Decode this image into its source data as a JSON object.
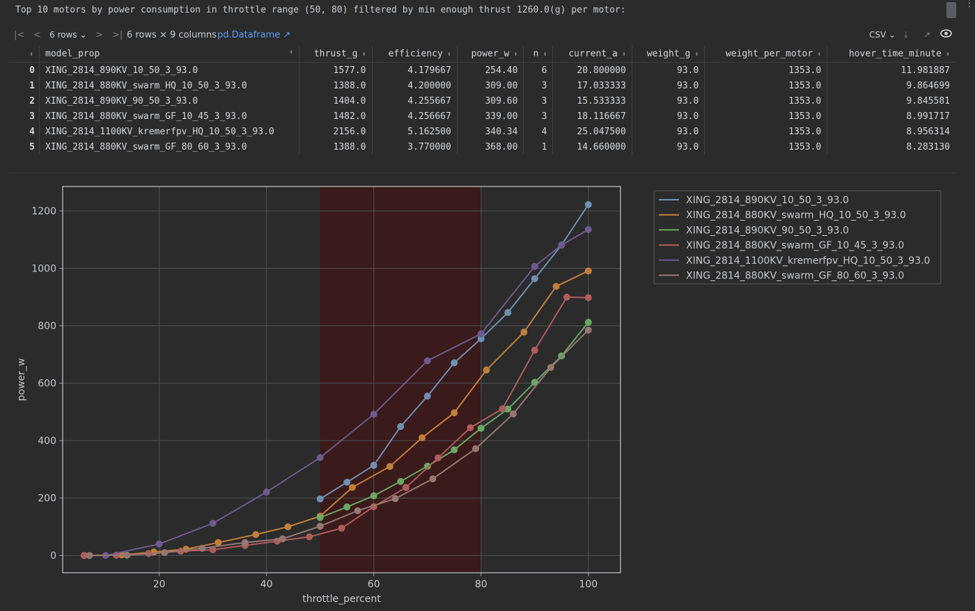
{
  "output_text": "Top 10 motors by power consumption in throttle range (50, 80) filtered by min enough thrust 1260.0(g) per motor:",
  "toolbar": {
    "rows_selector": "6 rows",
    "summary": "6 rows × 9 columns",
    "link": "pd.Dataframe ↗",
    "export_label": "CSV"
  },
  "table": {
    "columns": [
      "model_prop",
      "thrust_g",
      "efficiency",
      "power_w",
      "n",
      "current_a",
      "weight_g",
      "weight_per_motor",
      "hover_time_minute"
    ],
    "rows": [
      [
        "0",
        "XING_2814_890KV_10_50_3_93.0",
        "1577.0",
        "4.179667",
        "254.40",
        "6",
        "20.800000",
        "93.0",
        "1353.0",
        "11.981887"
      ],
      [
        "1",
        "XING_2814_880KV_swarm_HQ_10_50_3_93.0",
        "1388.0",
        "4.200000",
        "309.00",
        "3",
        "17.033333",
        "93.0",
        "1353.0",
        "9.864699"
      ],
      [
        "2",
        "XING_2814_890KV_90_50_3_93.0",
        "1404.0",
        "4.255667",
        "309.60",
        "3",
        "15.533333",
        "93.0",
        "1353.0",
        "9.845581"
      ],
      [
        "3",
        "XING_2814_880KV_swarm_GF_10_45_3_93.0",
        "1482.0",
        "4.256667",
        "339.00",
        "3",
        "18.116667",
        "93.0",
        "1353.0",
        "8.991717"
      ],
      [
        "4",
        "XING_2814_1100KV_kremerfpv_HQ_10_50_3_93.0",
        "2156.0",
        "5.162500",
        "340.34",
        "4",
        "25.047500",
        "93.0",
        "1353.0",
        "8.956314"
      ],
      [
        "5",
        "XING_2814_880KV_swarm_GF_80_60_3_93.0",
        "1388.0",
        "3.770000",
        "368.00",
        "1",
        "14.660000",
        "93.0",
        "1353.0",
        "8.283130"
      ]
    ]
  },
  "chart_data": {
    "type": "line",
    "xlabel": "throttle_percent",
    "ylabel": "power_w",
    "xlim": [
      2,
      106
    ],
    "ylim": [
      -60,
      1285
    ],
    "xticks": [
      20,
      40,
      60,
      80,
      100
    ],
    "yticks": [
      0,
      200,
      400,
      600,
      800,
      1000,
      1200
    ],
    "grid": true,
    "legend_position": "outside-right-top",
    "highlight_span": {
      "x0": 50,
      "x1": 80,
      "color": "#3a1a1a"
    },
    "series": [
      {
        "name": "XING_2814_890KV_10_50_3_93.0",
        "color": "#6f8fb3",
        "x": [
          50,
          55,
          60,
          65,
          70,
          75,
          80,
          85,
          90,
          95,
          100
        ],
        "y": [
          197,
          255,
          314,
          449,
          555,
          671,
          755,
          846,
          964,
          1081,
          1222
        ]
      },
      {
        "name": "XING_2814_880KV_swarm_HQ_10_50_3_93.0",
        "color": "#c17f3a",
        "x": [
          6,
          13,
          19,
          25,
          31,
          38,
          44,
          50,
          56,
          63,
          69,
          75,
          81,
          88,
          94,
          100
        ],
        "y": [
          0,
          2,
          12,
          22,
          45,
          73,
          100,
          137,
          237,
          310,
          410,
          497,
          646,
          778,
          937,
          991
        ]
      },
      {
        "name": "XING_2814_890KV_90_50_3_93.0",
        "color": "#6aa864",
        "x": [
          50,
          55,
          60,
          65,
          70,
          75,
          80,
          85,
          90,
          95,
          100
        ],
        "y": [
          132,
          169,
          208,
          258,
          311,
          368,
          443,
          510,
          603,
          695,
          812
        ]
      },
      {
        "name": "XING_2814_880KV_swarm_GF_10_45_3_93.0",
        "color": "#b05c5c",
        "x": [
          6,
          12,
          18,
          24,
          30,
          36,
          42,
          48,
          54,
          60,
          66,
          72,
          78,
          84,
          90,
          96,
          100
        ],
        "y": [
          0,
          1,
          7,
          15,
          20,
          35,
          50,
          65,
          95,
          170,
          237,
          340,
          445,
          511,
          715,
          900,
          898
        ]
      },
      {
        "name": "XING_2814_1100KV_kremerfpv_HQ_10_50_3_93.0",
        "color": "#6e5a8e",
        "x": [
          10,
          20,
          30,
          40,
          50,
          60,
          70,
          80,
          90,
          95,
          100
        ],
        "y": [
          0,
          40,
          112,
          221,
          341,
          492,
          678,
          772,
          1007,
          1081,
          1135
        ]
      },
      {
        "name": "XING_2814_880KV_swarm_GF_80_60_3_93.0",
        "color": "#957872",
        "x": [
          7,
          14,
          21,
          28,
          36,
          43,
          50,
          57,
          64,
          71,
          79,
          86,
          93,
          100
        ],
        "y": [
          0,
          1,
          10,
          25,
          45,
          58,
          102,
          156,
          198,
          267,
          372,
          493,
          655,
          785
        ]
      }
    ]
  }
}
